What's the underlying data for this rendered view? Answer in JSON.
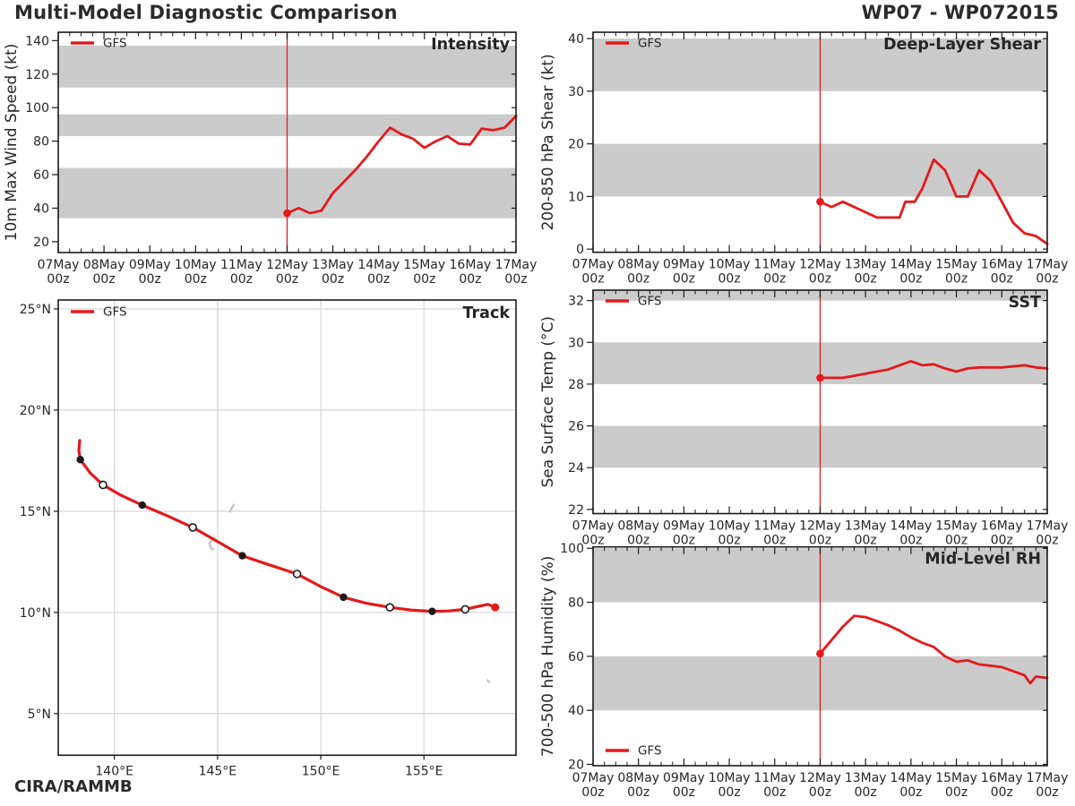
{
  "header": {
    "title": "Multi-Model Diagnostic Comparison",
    "storm_id": "WP07 - WP072015"
  },
  "footer": {
    "credit": "CIRA/RAMMB"
  },
  "legend": {
    "label": "GFS"
  },
  "colors": {
    "series": "#e3191c",
    "band": "#cbcbcb",
    "grid": "#d6d6d6",
    "axis": "#1a1a1a",
    "text": "#262626",
    "title": "#2b2b2b",
    "island": "#c4c4c4"
  },
  "time_axis": {
    "days": [
      "07May",
      "08May",
      "09May",
      "10May",
      "11May",
      "12May",
      "13May",
      "14May",
      "15May",
      "16May",
      "17May"
    ],
    "hour_label": "00z",
    "vline_day": "12May"
  },
  "chart_data": [
    {
      "id": "intensity",
      "type": "line",
      "title": "Intensity",
      "ylabel": "10m Max Wind Speed (kt)",
      "legend_entry": "GFS",
      "legend_pos": "top-left",
      "ylim": [
        13.5,
        145
      ],
      "yticks": [
        20,
        40,
        60,
        80,
        100,
        120,
        140
      ],
      "bands": [
        [
          34,
          64
        ],
        [
          83,
          96
        ],
        [
          112,
          137
        ]
      ],
      "hours": [
        0,
        6,
        12,
        18,
        24,
        30,
        36,
        42,
        48,
        54,
        60,
        66,
        72,
        78,
        84,
        90,
        96,
        102,
        108,
        114,
        120
      ],
      "values": [
        37,
        40,
        37,
        38.5,
        49,
        56,
        63,
        71,
        80,
        88,
        84,
        81.5,
        76,
        80,
        83,
        78.5,
        78,
        87.5,
        86.5,
        88,
        95
      ]
    },
    {
      "id": "shear",
      "type": "line",
      "title": "Deep-Layer Shear",
      "ylabel": "200-850 hPa Shear (kt)",
      "legend_entry": "GFS",
      "legend_pos": "top-left",
      "ylim": [
        -0.6,
        41.2
      ],
      "yticks": [
        0,
        10,
        20,
        30,
        40
      ],
      "bands": [
        [
          10,
          20
        ],
        [
          30,
          40
        ]
      ],
      "hours": [
        0,
        6,
        12,
        18,
        24,
        30,
        36,
        42,
        45,
        50,
        54,
        60,
        66,
        72,
        78,
        84,
        90,
        96,
        102,
        108,
        114,
        120
      ],
      "values": [
        9,
        8,
        9,
        8,
        7,
        6,
        6,
        6,
        9,
        9,
        11.5,
        17,
        15,
        10,
        10,
        15,
        13,
        9,
        5,
        3,
        2.5,
        1
      ]
    },
    {
      "id": "sst",
      "type": "line",
      "title": "SST",
      "ylabel": "Sea Surface Temp (°C)",
      "legend_entry": "GFS",
      "legend_pos": "top-left",
      "ylim": [
        21.8,
        32.5
      ],
      "yticks": [
        22,
        24,
        26,
        28,
        30,
        32
      ],
      "bands": [
        [
          24,
          26
        ],
        [
          28,
          30
        ],
        [
          32,
          32.5
        ]
      ],
      "hours": [
        0,
        6,
        12,
        18,
        24,
        30,
        36,
        42,
        48,
        54,
        60,
        66,
        72,
        78,
        84,
        90,
        96,
        102,
        108,
        114,
        120
      ],
      "values": [
        28.3,
        28.3,
        28.3,
        28.4,
        28.5,
        28.6,
        28.7,
        28.9,
        29.1,
        28.9,
        28.95,
        28.75,
        28.6,
        28.75,
        28.8,
        28.8,
        28.8,
        28.85,
        28.9,
        28.8,
        28.75
      ]
    },
    {
      "id": "rh",
      "type": "line",
      "title": "Mid-Level RH",
      "ylabel": "700-500 hPa Humidity (%)",
      "legend_entry": "GFS",
      "legend_pos": "bottom-left",
      "ylim": [
        19.5,
        100.5
      ],
      "yticks": [
        20,
        40,
        60,
        80,
        100
      ],
      "bands": [
        [
          40,
          60
        ],
        [
          80,
          100
        ]
      ],
      "hours": [
        0,
        6,
        12,
        18,
        24,
        30,
        36,
        42,
        48,
        54,
        60,
        66,
        72,
        78,
        84,
        90,
        96,
        102,
        108,
        111,
        114,
        120
      ],
      "values": [
        61,
        66,
        71,
        75,
        74.5,
        73,
        71.5,
        69.5,
        67,
        65,
        63.5,
        60,
        58,
        58.5,
        57,
        56.5,
        56,
        54.5,
        53,
        50,
        52.5,
        52
      ]
    },
    {
      "id": "track",
      "type": "track",
      "title": "Track",
      "legend_entry": "GFS",
      "legend_pos": "top-left",
      "xlim": [
        137.28,
        159.46
      ],
      "ylim": [
        2.94,
        25.44
      ],
      "xticks": [
        140,
        145,
        150,
        155
      ],
      "xtick_suffix": "°E",
      "yticks": [
        5,
        10,
        15,
        20,
        25
      ],
      "ytick_suffix": "°N",
      "points": [
        {
          "lon": 158.45,
          "lat": 10.25,
          "marker": "start"
        },
        {
          "lon": 158.1,
          "lat": 10.4
        },
        {
          "lon": 157.55,
          "lat": 10.28
        },
        {
          "lon": 157.0,
          "lat": 10.15,
          "marker": "open"
        },
        {
          "lon": 156.2,
          "lat": 10.07
        },
        {
          "lon": 155.4,
          "lat": 10.05,
          "marker": "filled"
        },
        {
          "lon": 154.35,
          "lat": 10.12
        },
        {
          "lon": 153.35,
          "lat": 10.25,
          "marker": "open"
        },
        {
          "lon": 152.2,
          "lat": 10.45
        },
        {
          "lon": 151.1,
          "lat": 10.75,
          "marker": "filled"
        },
        {
          "lon": 149.95,
          "lat": 11.3
        },
        {
          "lon": 148.85,
          "lat": 11.9,
          "marker": "open"
        },
        {
          "lon": 147.5,
          "lat": 12.35
        },
        {
          "lon": 146.2,
          "lat": 12.8,
          "marker": "filled"
        },
        {
          "lon": 145.0,
          "lat": 13.5
        },
        {
          "lon": 143.8,
          "lat": 14.2,
          "marker": "open"
        },
        {
          "lon": 142.55,
          "lat": 14.78
        },
        {
          "lon": 141.35,
          "lat": 15.3,
          "marker": "filled"
        },
        {
          "lon": 140.3,
          "lat": 15.8
        },
        {
          "lon": 139.45,
          "lat": 16.3,
          "marker": "open"
        },
        {
          "lon": 138.82,
          "lat": 16.9
        },
        {
          "lon": 138.35,
          "lat": 17.55,
          "marker": "filled"
        },
        {
          "lon": 138.28,
          "lat": 18.0
        },
        {
          "lon": 138.32,
          "lat": 18.5
        }
      ],
      "islands": [
        {
          "name": "saipan-tinian",
          "pts": [
            [
              145.78,
              15.32
            ],
            [
              145.6,
              14.98
            ]
          ]
        },
        {
          "name": "guam",
          "pts": [
            [
              144.82,
              13.68
            ],
            [
              144.6,
              13.42
            ],
            [
              144.68,
              13.18
            ],
            [
              144.78,
              13.12
            ]
          ]
        },
        {
          "name": "pohnpei",
          "pts": [
            [
              158.08,
              6.65
            ],
            [
              158.14,
              6.56
            ]
          ]
        }
      ]
    }
  ]
}
